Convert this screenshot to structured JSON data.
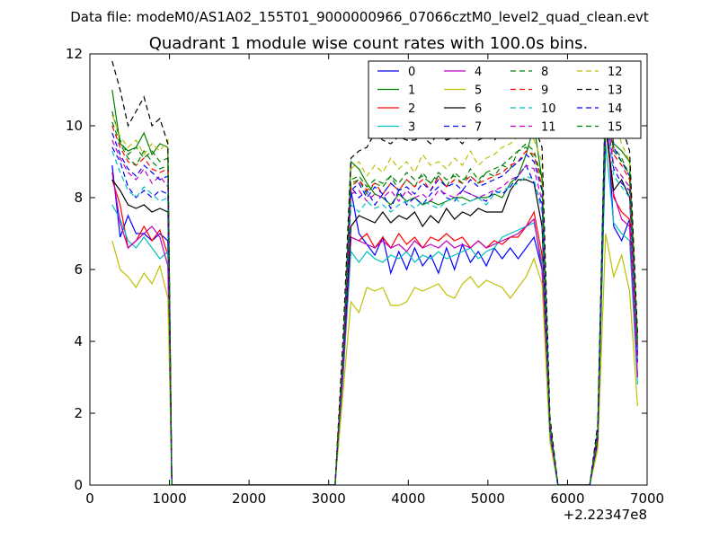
{
  "figure": {
    "suptitle": "Data file: modeM0/AS1A02_155T01_9000000966_07066cztM0_level2_quad_clean.evt"
  },
  "chart_data": {
    "type": "line",
    "title": "Quadrant 1 module wise count rates with 100.0s bins.",
    "xlabel": "",
    "ylabel": "",
    "x_offset_label": "+2.22347e8",
    "xlim": [
      0,
      7000
    ],
    "ylim": [
      0,
      12
    ],
    "x_ticks": [
      0,
      1000,
      2000,
      3000,
      4000,
      5000,
      6000,
      7000
    ],
    "y_ticks": [
      0,
      2,
      4,
      6,
      8,
      10,
      12
    ],
    "x_tick_labels": [
      "0",
      "1000",
      "2000",
      "3000",
      "4000",
      "5000",
      "6000",
      "7000"
    ],
    "y_tick_labels": [
      "0",
      "2",
      "4",
      "6",
      "8",
      "10",
      "12"
    ],
    "grid": false,
    "legend": {
      "placement": "top-right",
      "columns": 4
    },
    "x": [
      280,
      380,
      480,
      580,
      680,
      780,
      880,
      980,
      1030,
      1080,
      3080,
      3180,
      3280,
      3380,
      3480,
      3580,
      3680,
      3780,
      3880,
      3980,
      4080,
      4180,
      4280,
      4380,
      4480,
      4580,
      4680,
      4780,
      4880,
      4980,
      5080,
      5180,
      5280,
      5380,
      5480,
      5580,
      5680,
      5780,
      5880,
      6280,
      6380,
      6480,
      6580,
      6680,
      6780,
      6880
    ],
    "series": [
      {
        "name": "0",
        "color": "#0000ff",
        "style": "solid",
        "values": [
          8.9,
          6.9,
          7.5,
          7.0,
          7.0,
          6.8,
          7.0,
          6.8,
          0,
          0,
          0,
          3.2,
          8.2,
          7.0,
          6.7,
          6.4,
          6.9,
          5.9,
          6.5,
          6.0,
          6.6,
          6.1,
          6.4,
          5.9,
          6.6,
          6.0,
          6.7,
          6.2,
          6.5,
          6.1,
          6.6,
          6.3,
          6.6,
          6.3,
          6.6,
          6.9,
          6.0,
          1.4,
          0,
          0,
          1.2,
          10.8,
          7.2,
          6.8,
          7.4,
          3.4
        ]
      },
      {
        "name": "1",
        "color": "#008000",
        "style": "solid",
        "values": [
          11.0,
          9.5,
          9.3,
          9.4,
          9.8,
          9.2,
          9.5,
          9.4,
          0,
          0,
          0,
          3.4,
          9.0,
          8.8,
          8.4,
          8.1,
          8.0,
          7.8,
          8.1,
          7.9,
          8.0,
          7.8,
          7.9,
          7.8,
          7.9,
          8.0,
          8.0,
          7.9,
          8.0,
          8.0,
          8.1,
          8.0,
          8.4,
          8.6,
          9.2,
          10.0,
          8.5,
          1.5,
          0,
          0,
          1.3,
          11.2,
          9.5,
          9.3,
          9.0,
          4.0
        ]
      },
      {
        "name": "2",
        "color": "#ff0000",
        "style": "solid",
        "values": [
          8.5,
          7.8,
          6.6,
          6.8,
          7.2,
          6.8,
          7.1,
          6.4,
          0,
          0,
          0,
          3.2,
          6.9,
          6.8,
          7.0,
          6.6,
          6.9,
          6.6,
          7.0,
          6.7,
          6.9,
          6.6,
          6.9,
          6.8,
          7.0,
          6.8,
          6.9,
          6.6,
          6.8,
          6.6,
          6.8,
          6.7,
          6.9,
          6.9,
          7.2,
          7.6,
          6.4,
          1.4,
          0,
          0,
          1.2,
          10.0,
          8.0,
          7.6,
          7.4,
          3.0
        ]
      },
      {
        "name": "3",
        "color": "#00bfbf",
        "style": "solid",
        "values": [
          7.8,
          7.4,
          6.8,
          6.6,
          6.9,
          6.6,
          6.3,
          6.5,
          0,
          0,
          0,
          3.0,
          6.5,
          6.2,
          6.5,
          6.3,
          6.2,
          6.4,
          6.3,
          6.5,
          6.2,
          6.4,
          6.3,
          6.5,
          6.3,
          6.4,
          6.5,
          6.6,
          6.3,
          6.5,
          6.6,
          6.9,
          7.0,
          7.1,
          7.2,
          7.3,
          6.2,
          1.3,
          0,
          0,
          1.2,
          9.5,
          7.3,
          7.0,
          6.8,
          2.8
        ]
      },
      {
        "name": "4",
        "color": "#bf00bf",
        "style": "solid",
        "values": [
          8.7,
          7.3,
          6.6,
          6.8,
          7.0,
          7.2,
          6.9,
          6.1,
          0,
          0,
          0,
          3.1,
          6.9,
          6.8,
          6.7,
          6.6,
          6.8,
          6.6,
          6.7,
          6.5,
          6.8,
          6.6,
          6.7,
          6.6,
          6.8,
          6.6,
          6.7,
          6.6,
          6.8,
          6.6,
          6.7,
          6.8,
          6.9,
          7.0,
          7.2,
          7.4,
          6.0,
          1.4,
          0,
          0,
          1.2,
          10.2,
          8.1,
          7.4,
          7.2,
          3.0
        ]
      },
      {
        "name": "5",
        "color": "#bfbf00",
        "style": "solid",
        "values": [
          6.8,
          6.0,
          5.8,
          5.5,
          5.9,
          5.6,
          6.1,
          5.2,
          0,
          0,
          0,
          2.6,
          5.1,
          4.8,
          5.5,
          5.4,
          5.5,
          5.0,
          5.0,
          5.1,
          5.5,
          5.4,
          5.5,
          5.6,
          5.3,
          5.2,
          5.6,
          5.8,
          5.5,
          5.7,
          5.6,
          5.5,
          5.2,
          5.5,
          5.8,
          6.3,
          5.6,
          1.2,
          0,
          0,
          1.0,
          7.0,
          5.8,
          6.4,
          5.4,
          2.2
        ]
      },
      {
        "name": "6",
        "color": "#000000",
        "style": "solid",
        "values": [
          8.5,
          8.2,
          7.8,
          7.7,
          7.8,
          7.6,
          7.7,
          7.6,
          0,
          0,
          0,
          3.4,
          7.2,
          7.5,
          7.4,
          7.3,
          7.6,
          7.3,
          7.5,
          7.4,
          7.6,
          7.2,
          7.5,
          7.3,
          7.7,
          7.4,
          7.6,
          7.5,
          7.7,
          7.6,
          7.6,
          7.6,
          8.2,
          8.5,
          8.5,
          8.4,
          7.2,
          1.5,
          0,
          0,
          1.3,
          10.0,
          8.2,
          8.5,
          8.0,
          3.6
        ]
      },
      {
        "name": "7",
        "color": "#0000ff",
        "style": "dashed",
        "values": [
          9.4,
          9.0,
          8.3,
          8.0,
          8.2,
          8.0,
          8.2,
          8.1,
          0,
          0,
          0,
          3.6,
          8.3,
          8.0,
          8.2,
          7.8,
          8.1,
          7.7,
          8.2,
          7.8,
          8.0,
          7.8,
          8.1,
          8.3,
          8.0,
          7.9,
          8.2,
          8.1,
          8.0,
          7.9,
          8.2,
          8.1,
          8.3,
          8.6,
          8.9,
          8.4,
          7.8,
          1.6,
          0,
          0,
          1.4,
          10.6,
          8.8,
          8.4,
          8.2,
          3.6
        ]
      },
      {
        "name": "8",
        "color": "#008000",
        "style": "dashed",
        "values": [
          10.4,
          9.6,
          9.2,
          9.4,
          9.1,
          9.3,
          9.0,
          9.1,
          0,
          0,
          0,
          3.7,
          8.4,
          8.5,
          8.1,
          8.4,
          8.3,
          8.6,
          8.2,
          8.5,
          8.3,
          8.7,
          8.4,
          8.6,
          8.3,
          8.7,
          8.5,
          8.6,
          8.4,
          8.7,
          8.6,
          8.9,
          8.8,
          9.3,
          9.4,
          9.1,
          8.6,
          1.7,
          0,
          0,
          1.5,
          11.0,
          9.4,
          9.1,
          8.6,
          3.9
        ]
      },
      {
        "name": "9",
        "color": "#ff0000",
        "style": "dashed",
        "values": [
          10.0,
          9.4,
          9.0,
          8.9,
          9.1,
          8.8,
          8.7,
          8.8,
          0,
          0,
          0,
          3.6,
          8.3,
          8.5,
          8.2,
          8.4,
          8.1,
          8.4,
          8.2,
          8.5,
          8.3,
          8.5,
          8.2,
          8.6,
          8.3,
          8.5,
          8.4,
          8.6,
          8.4,
          8.5,
          8.6,
          8.7,
          8.9,
          9.0,
          9.3,
          9.2,
          8.3,
          1.6,
          0,
          0,
          1.5,
          10.7,
          9.2,
          8.9,
          8.5,
          3.8
        ]
      },
      {
        "name": "10",
        "color": "#00bfbf",
        "style": "dashed",
        "values": [
          9.3,
          8.7,
          8.2,
          8.0,
          8.3,
          8.1,
          7.9,
          8.0,
          0,
          0,
          0,
          3.4,
          7.8,
          7.6,
          7.9,
          7.7,
          7.8,
          7.6,
          7.8,
          7.9,
          7.7,
          7.9,
          7.8,
          7.7,
          7.9,
          8.0,
          7.8,
          7.9,
          8.0,
          7.8,
          8.1,
          8.2,
          8.3,
          8.4,
          8.6,
          8.5,
          7.6,
          1.5,
          0,
          0,
          1.4,
          10.3,
          8.6,
          8.3,
          8.0,
          3.4
        ]
      },
      {
        "name": "11",
        "color": "#bf00bf",
        "style": "dashed",
        "values": [
          9.6,
          9.1,
          8.7,
          8.5,
          8.8,
          8.4,
          8.6,
          8.3,
          0,
          0,
          0,
          3.5,
          8.1,
          8.2,
          7.9,
          8.1,
          8.0,
          8.2,
          7.9,
          8.2,
          8.0,
          8.1,
          7.9,
          8.2,
          8.1,
          8.0,
          8.2,
          8.1,
          8.0,
          8.1,
          8.2,
          8.3,
          8.5,
          8.6,
          8.9,
          8.8,
          7.9,
          1.5,
          0,
          0,
          1.4,
          10.5,
          8.9,
          8.6,
          8.3,
          3.5
        ]
      },
      {
        "name": "12",
        "color": "#bfbf00",
        "style": "dashed",
        "values": [
          10.3,
          9.7,
          9.4,
          9.6,
          9.2,
          9.5,
          9.3,
          9.6,
          0,
          0,
          0,
          3.8,
          8.8,
          9.0,
          8.6,
          8.9,
          8.7,
          9.1,
          8.8,
          9.0,
          8.7,
          9.2,
          8.9,
          9.0,
          8.8,
          9.1,
          8.9,
          9.3,
          8.9,
          9.1,
          9.2,
          9.4,
          9.5,
          9.7,
          9.9,
          9.6,
          9.0,
          1.8,
          0,
          0,
          1.6,
          11.0,
          10.2,
          9.5,
          9.0,
          4.0
        ]
      },
      {
        "name": "13",
        "color": "#000000",
        "style": "dashed",
        "values": [
          11.8,
          11.0,
          10.0,
          10.4,
          10.8,
          10.0,
          10.2,
          9.5,
          0,
          0,
          0,
          4.1,
          9.1,
          9.3,
          9.4,
          9.8,
          9.6,
          9.5,
          9.7,
          9.6,
          9.6,
          9.7,
          9.5,
          9.8,
          9.6,
          9.7,
          9.5,
          9.8,
          9.6,
          9.7,
          9.6,
          9.8,
          9.7,
          9.9,
          10.3,
          10.0,
          9.4,
          1.9,
          0,
          0,
          1.7,
          11.2,
          10.5,
          10.0,
          9.3,
          4.2
        ]
      },
      {
        "name": "14",
        "color": "#0000ff",
        "style": "dashed",
        "values": [
          9.8,
          9.2,
          8.8,
          8.6,
          8.9,
          8.7,
          8.5,
          8.6,
          0,
          0,
          0,
          3.5,
          8.2,
          8.4,
          8.0,
          8.3,
          8.1,
          8.4,
          8.2,
          8.3,
          8.1,
          8.4,
          8.2,
          8.5,
          8.3,
          8.4,
          8.2,
          8.5,
          8.3,
          8.4,
          8.5,
          8.6,
          8.8,
          9.0,
          9.2,
          9.0,
          8.2,
          1.6,
          0,
          0,
          1.5,
          10.9,
          9.4,
          9.0,
          8.6,
          3.7
        ]
      },
      {
        "name": "15",
        "color": "#008000",
        "style": "dashed",
        "values": [
          10.1,
          9.5,
          9.1,
          8.9,
          9.3,
          9.0,
          8.8,
          8.9,
          0,
          0,
          0,
          3.6,
          8.5,
          8.6,
          8.3,
          8.5,
          8.4,
          8.6,
          8.4,
          8.7,
          8.5,
          8.6,
          8.4,
          8.7,
          8.5,
          8.6,
          8.4,
          8.8,
          8.5,
          8.7,
          8.8,
          8.9,
          9.1,
          9.3,
          9.5,
          9.3,
          8.5,
          1.7,
          0,
          0,
          1.5,
          10.8,
          9.3,
          9.0,
          8.7,
          3.9
        ]
      }
    ]
  }
}
